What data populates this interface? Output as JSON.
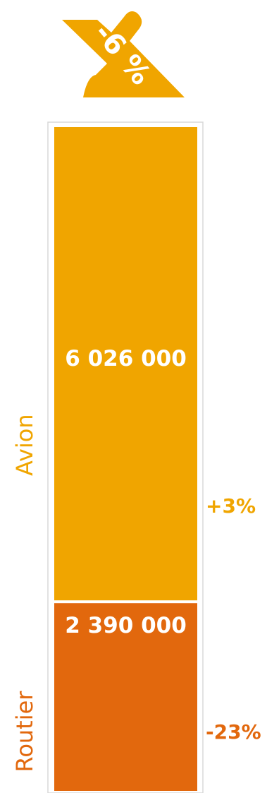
{
  "badge": {
    "label": "-6 %",
    "color": "#f0a500",
    "icon": "arrow-down-right-icon"
  },
  "chart_data": {
    "type": "bar",
    "stacked": true,
    "title": "",
    "xlabel": "",
    "ylabel": "",
    "series": [
      {
        "name": "Avion",
        "value": 6026000,
        "value_label": "6 026 000",
        "change_label": "+3%",
        "color": "#f0a500"
      },
      {
        "name": "Routier",
        "value": 2390000,
        "value_label": "2 390 000",
        "change_label": "-23%",
        "color": "#e2680d"
      }
    ],
    "total_change_label": "-6 %",
    "grid": false,
    "legend": "none"
  }
}
